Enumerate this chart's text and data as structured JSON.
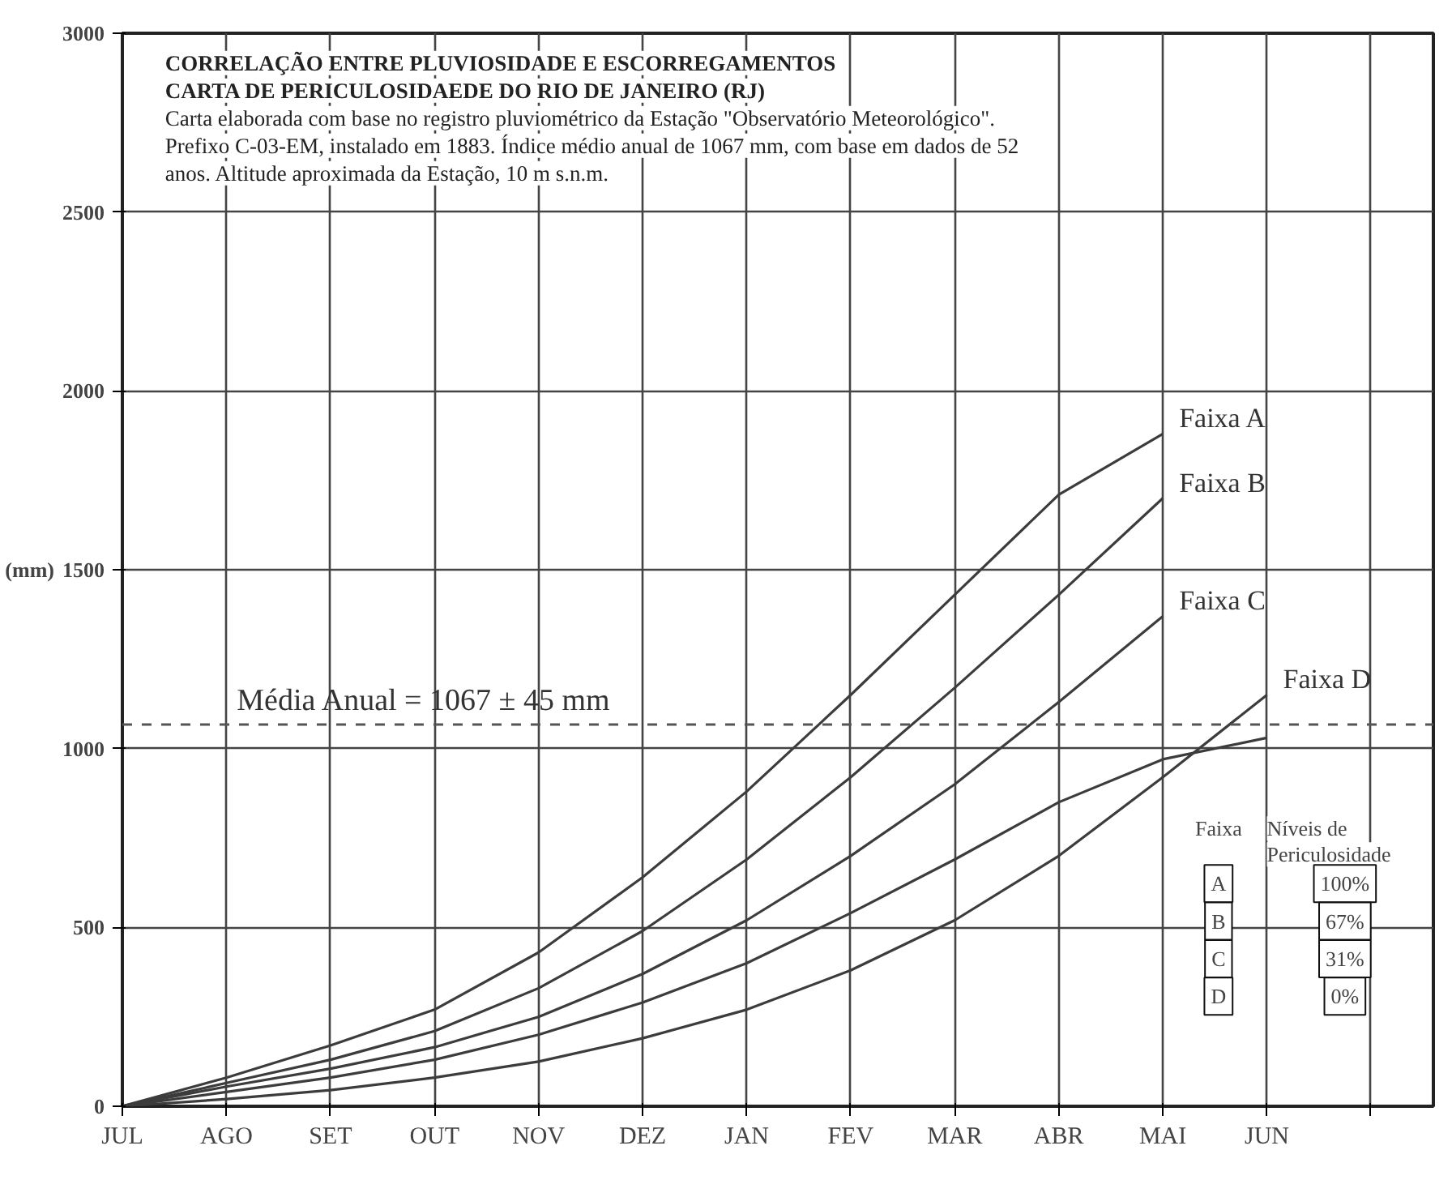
{
  "chart_data": {
    "type": "line",
    "title": "CORRELAÇÃO ENTRE PLUVIOSIDADE E ESCORREGAMENTOS",
    "subtitle": "CARTA DE PERICULOSIDAEDE DO RIO DE JANEIRO (RJ)",
    "ylabel": "(mm)",
    "annotations": [
      "Carta elaborada com base no registro pluviométrico da Estação \"Observatório Meteorológico\". Prefixo C-03-EM, instalado em 1883. Índice médio anual de 1067 mm, com base em dados de 52 anos. Altitude aproximada da Estação, 10 m s.n.m.",
      "Faixa",
      "Níveis de Periculosidade",
      "A",
      "100%",
      "B",
      "67%",
      "C",
      "31%",
      "D",
      "0%"
    ],
    "categories": [
      "JUL",
      "AGO",
      "SET",
      "OUT",
      "NOV",
      "DEZ",
      "JAN",
      "FEV",
      "MAR",
      "ABR",
      "MAI",
      "JUN"
    ],
    "ylim": [
      0,
      3000
    ],
    "yticks": [
      0,
      500,
      1000,
      1500,
      2000,
      2500,
      3000
    ],
    "grid": true,
    "line_style": "solid",
    "ref_lines": [
      {
        "axis": "y",
        "value": 1067,
        "label": "Média Anual = 1067 ± 45 mm",
        "color": "#555555",
        "line_style": "dashed"
      }
    ],
    "series": [
      {
        "name": "Faixa A",
        "color": "#3c3c3c",
        "values": [
          0,
          80,
          170,
          270,
          430,
          640,
          880,
          1150,
          1430,
          1710,
          1880,
          null
        ]
      },
      {
        "name": "Faixa B",
        "color": "#3c3c3c",
        "values": [
          0,
          65,
          130,
          210,
          330,
          490,
          690,
          920,
          1170,
          1430,
          1700,
          null
        ]
      },
      {
        "name": "Faixa C",
        "color": "#3c3c3c",
        "values": [
          0,
          55,
          105,
          165,
          250,
          370,
          520,
          700,
          900,
          1130,
          1370,
          null
        ]
      },
      {
        "name": "Faixa D",
        "color": "#3c3c3c",
        "values": [
          0,
          20,
          45,
          80,
          125,
          190,
          270,
          380,
          520,
          700,
          920,
          1150
        ]
      },
      {
        "color": "#3c3c3c",
        "values": [
          0,
          40,
          80,
          130,
          200,
          290,
          400,
          540,
          690,
          850,
          970,
          1030
        ]
      }
    ]
  }
}
